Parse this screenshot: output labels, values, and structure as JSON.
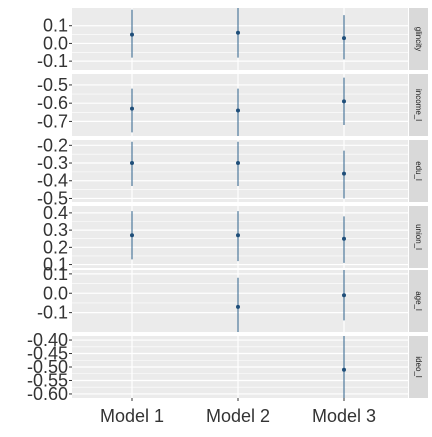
{
  "chart_data": {
    "type": "scatter",
    "subtype": "coefficient-plot",
    "categories": [
      "Model 1",
      "Model 2",
      "Model 3"
    ],
    "colors": {
      "panel_bg": "#ebebeb",
      "grid": "#ffffff",
      "strip_bg": "#d9d9d9",
      "point": "#1f4e79",
      "line": "#2b5f8a",
      "tick_text": "#333333"
    },
    "panels": [
      {
        "label": "glincity",
        "ylim": [
          -0.15,
          0.2
        ],
        "ticks": [
          -0.1,
          0.0,
          0.1
        ],
        "tick_labels": [
          "-0.1",
          "0.0",
          "0.1"
        ],
        "points": [
          {
            "x": "Model 1",
            "estimate": 0.05,
            "lower": -0.08,
            "upper": 0.19
          },
          {
            "x": "Model 2",
            "estimate": 0.06,
            "lower": -0.08,
            "upper": 0.2
          },
          {
            "x": "Model 3",
            "estimate": 0.03,
            "lower": -0.09,
            "upper": 0.16
          }
        ]
      },
      {
        "label": "income_l",
        "ylim": [
          -0.78,
          -0.44
        ],
        "ticks": [
          -0.7,
          -0.6,
          -0.5
        ],
        "tick_labels": [
          "-0.7",
          "-0.6",
          "-0.5"
        ],
        "points": [
          {
            "x": "Model 1",
            "estimate": -0.63,
            "lower": -0.76,
            "upper": -0.52
          },
          {
            "x": "Model 2",
            "estimate": -0.64,
            "lower": -0.78,
            "upper": -0.52
          },
          {
            "x": "Model 3",
            "estimate": -0.59,
            "lower": -0.72,
            "upper": -0.46
          }
        ]
      },
      {
        "label": "edu_l",
        "ylim": [
          -0.52,
          -0.17
        ],
        "ticks": [
          -0.5,
          -0.4,
          -0.3,
          -0.2
        ],
        "tick_labels": [
          "-0.5",
          "-0.4",
          "-0.3",
          "-0.2"
        ],
        "points": [
          {
            "x": "Model 1",
            "estimate": -0.3,
            "lower": -0.43,
            "upper": -0.18
          },
          {
            "x": "Model 2",
            "estimate": -0.3,
            "lower": -0.43,
            "upper": -0.18
          },
          {
            "x": "Model 3",
            "estimate": -0.36,
            "lower": -0.5,
            "upper": -0.23
          }
        ]
      },
      {
        "label": "union_l",
        "ylim": [
          0.08,
          0.44
        ],
        "ticks": [
          0.1,
          0.2,
          0.3,
          0.4
        ],
        "tick_labels": [
          "0.1",
          "0.2",
          "0.3",
          "0.4"
        ],
        "points": [
          {
            "x": "Model 1",
            "estimate": 0.27,
            "lower": 0.13,
            "upper": 0.41
          },
          {
            "x": "Model 2",
            "estimate": 0.27,
            "lower": 0.12,
            "upper": 0.41
          },
          {
            "x": "Model 3",
            "estimate": 0.25,
            "lower": 0.11,
            "upper": 0.38
          }
        ]
      },
      {
        "label": "age_l",
        "ylim": [
          -0.2,
          0.12
        ],
        "ticks": [
          -0.1,
          0.0,
          0.1
        ],
        "tick_labels": [
          "-0.1",
          "0.0",
          "0.1"
        ],
        "points": [
          {
            "x": "Model 2",
            "estimate": -0.07,
            "lower": -0.2,
            "upper": 0.08
          },
          {
            "x": "Model 3",
            "estimate": -0.01,
            "lower": -0.14,
            "upper": 0.12
          }
        ]
      },
      {
        "label": "ideo_l",
        "ylim": [
          -0.615,
          -0.385
        ],
        "ticks": [
          -0.6,
          -0.55,
          -0.5,
          -0.45,
          -0.4
        ],
        "tick_labels": [
          "-0.60",
          "-0.55",
          "-0.50",
          "-0.45",
          "-0.40"
        ],
        "points": [
          {
            "x": "Model 3",
            "estimate": -0.51,
            "lower": -0.615,
            "upper": -0.385
          }
        ]
      }
    ]
  }
}
